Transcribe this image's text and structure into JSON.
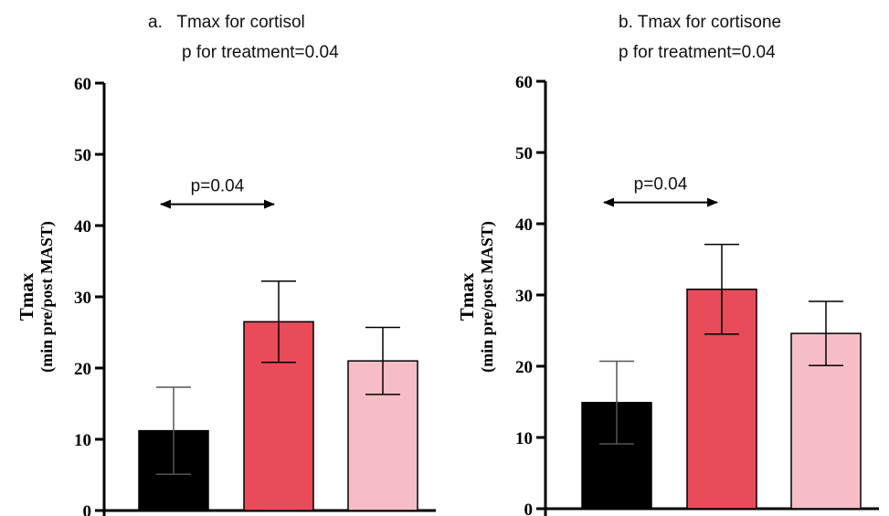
{
  "chart_data": [
    {
      "type": "bar",
      "title": "a.   Tmax for cortisol",
      "subtitle": "p for treatment=0.04",
      "ylabel": "Tmax",
      "ylabel_sub": "(min pre/post MAST)",
      "ylim": [
        0,
        60
      ],
      "yticks": [
        "0",
        "10",
        "20",
        "30",
        "40",
        "50",
        "60"
      ],
      "values": [
        11.2,
        26.5,
        21.0
      ],
      "error": [
        6.1,
        5.7,
        4.7
      ],
      "colors": [
        "#000000",
        "#e84b5a",
        "#f6bec4"
      ],
      "annotation": {
        "label": "p=0.04",
        "from_bar": 0,
        "to_bar": 1,
        "y": 43
      }
    },
    {
      "type": "bar",
      "title": "b. Tmax for cortisone",
      "subtitle": "p for treatment=0.04",
      "ylabel": "Tmax",
      "ylabel_sub": "(min pre/post MAST)",
      "ylim": [
        0,
        60
      ],
      "yticks": [
        "0",
        "10",
        "20",
        "30",
        "40",
        "50",
        "60"
      ],
      "values": [
        14.9,
        30.8,
        24.6
      ],
      "error": [
        5.8,
        6.3,
        4.5
      ],
      "colors": [
        "#000000",
        "#e84b5a",
        "#f6bec4"
      ],
      "annotation": {
        "label": "p=0.04",
        "from_bar": 0,
        "to_bar": 1,
        "y": 43
      }
    }
  ]
}
